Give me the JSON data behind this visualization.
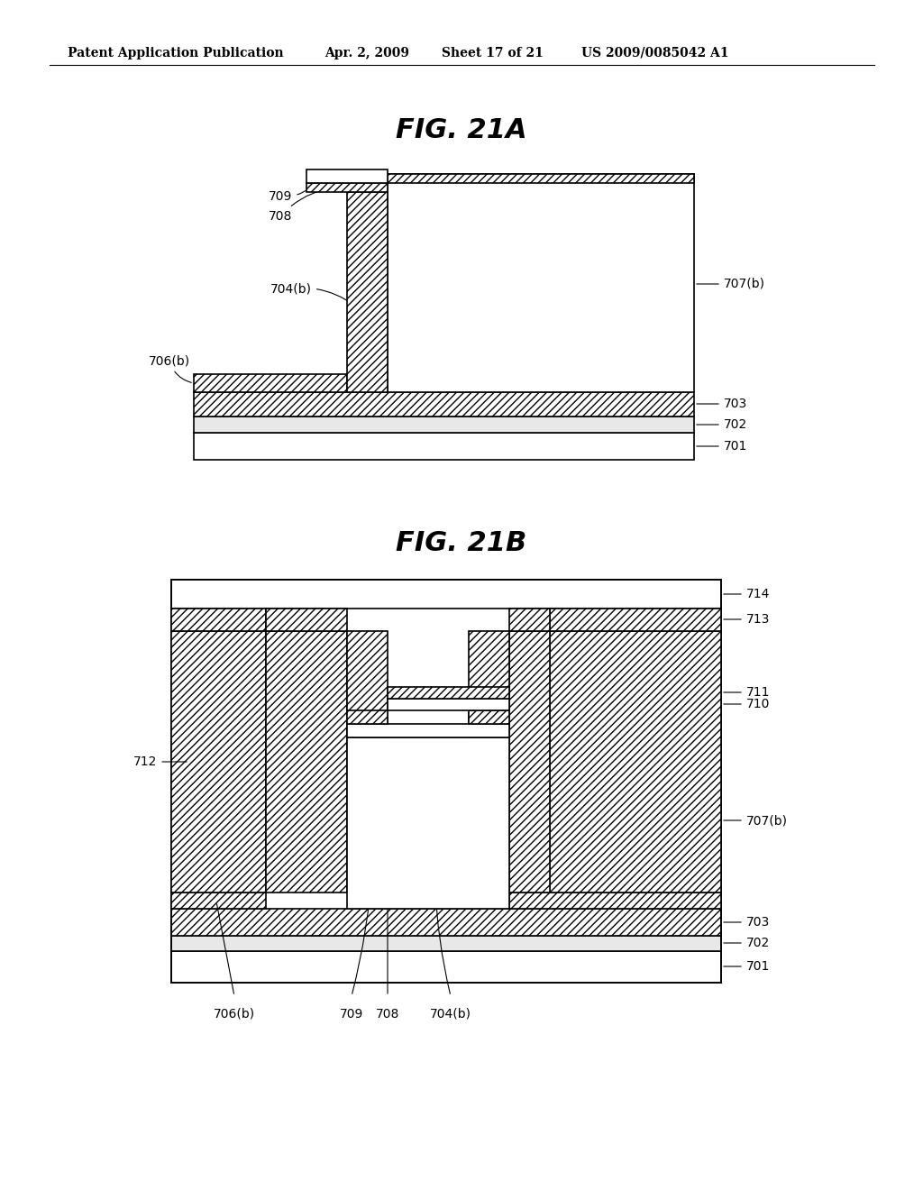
{
  "bg_color": "#ffffff",
  "header_text": "Patent Application Publication",
  "header_date": "Apr. 2, 2009",
  "header_sheet": "Sheet 17 of 21",
  "header_patent": "US 2009/0085042 A1",
  "fig_title_A": "FIG. 21A",
  "fig_title_B": "FIG. 21B",
  "label_fs": 10,
  "title_fs": 22,
  "header_fs": 10
}
